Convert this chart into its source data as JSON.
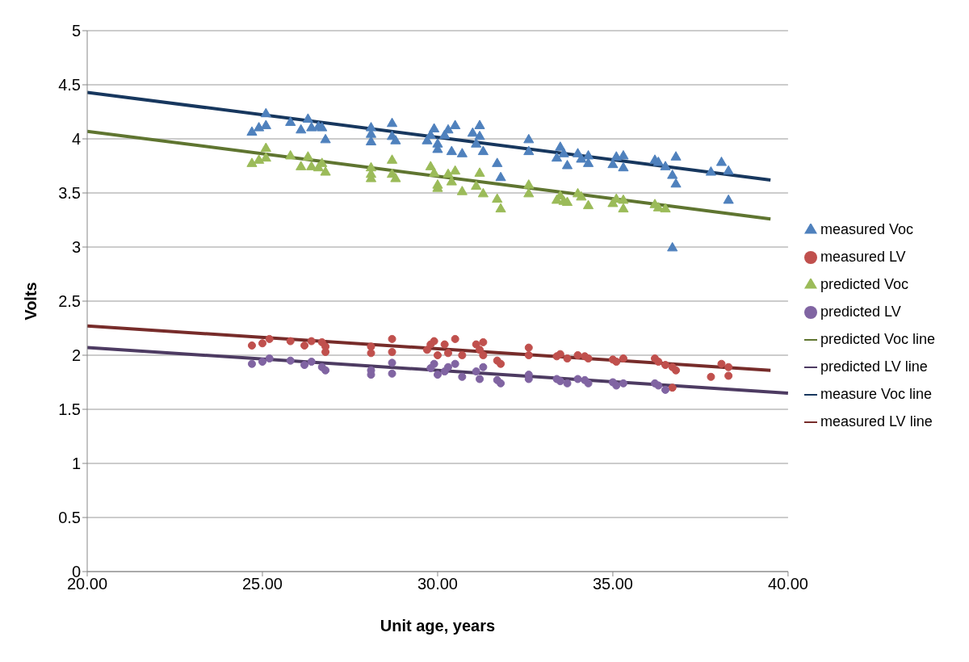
{
  "chart_data": {
    "type": "scatter",
    "xlabel": "Unit age, years",
    "ylabel": "Volts",
    "xlim": [
      20,
      40
    ],
    "xticks": [
      {
        "value": 20,
        "label": "20.00"
      },
      {
        "value": 25,
        "label": "25.00"
      },
      {
        "value": 30,
        "label": "30.00"
      },
      {
        "value": 35,
        "label": "35.00"
      },
      {
        "value": 40,
        "label": "40.00"
      }
    ],
    "ylim": [
      0,
      5
    ],
    "yticks": [
      0,
      0.5,
      1,
      1.5,
      2,
      2.5,
      3,
      3.5,
      4,
      4.5,
      5
    ],
    "grid": "y",
    "legend": "right",
    "series": [
      {
        "name": "measured Voc",
        "marker": "triangle",
        "color": "#4f81bd",
        "x": [
          24.7,
          24.9,
          25.1,
          25.1,
          25.8,
          26.1,
          26.3,
          26.4,
          26.6,
          26.7,
          26.8,
          28.1,
          28.1,
          28.1,
          28.7,
          28.7,
          28.8,
          29.7,
          29.8,
          29.9,
          30.0,
          30.0,
          30.2,
          30.3,
          30.4,
          30.5,
          30.7,
          31.0,
          31.1,
          31.2,
          31.2,
          31.3,
          31.7,
          31.8,
          32.6,
          32.6,
          33.4,
          33.5,
          33.6,
          33.7,
          34.0,
          34.1,
          34.3,
          34.3,
          35.0,
          35.1,
          35.3,
          35.3,
          36.2,
          36.3,
          36.5,
          36.7,
          36.8,
          36.8,
          36.7,
          37.8,
          38.1,
          38.3,
          38.3
        ],
        "values": [
          4.06,
          4.1,
          4.12,
          4.23,
          4.15,
          4.08,
          4.18,
          4.1,
          4.11,
          4.1,
          3.99,
          4.1,
          4.04,
          3.97,
          4.14,
          4.02,
          3.98,
          3.98,
          4.03,
          4.09,
          3.95,
          3.9,
          4.03,
          4.08,
          3.88,
          4.12,
          3.86,
          4.05,
          3.95,
          4.12,
          4.02,
          3.88,
          3.77,
          3.64,
          3.99,
          3.88,
          3.82,
          3.92,
          3.86,
          3.75,
          3.86,
          3.81,
          3.84,
          3.77,
          3.76,
          3.83,
          3.84,
          3.73,
          3.8,
          3.78,
          3.74,
          3.66,
          3.58,
          3.83,
          2.99,
          3.69,
          3.78,
          3.7,
          3.43
        ]
      },
      {
        "name": "measured LV",
        "marker": "circle",
        "color": "#c0504d",
        "x": [
          24.7,
          25.0,
          25.2,
          25.8,
          26.2,
          26.4,
          26.7,
          26.8,
          26.8,
          28.1,
          28.1,
          28.7,
          28.7,
          29.7,
          29.8,
          29.9,
          30.0,
          30.2,
          30.3,
          30.5,
          30.7,
          31.1,
          31.2,
          31.3,
          31.3,
          31.7,
          31.8,
          32.6,
          32.6,
          33.4,
          33.5,
          33.7,
          34.0,
          34.2,
          34.3,
          35.0,
          35.1,
          35.3,
          36.2,
          36.3,
          36.5,
          36.7,
          36.8,
          36.7,
          37.8,
          38.1,
          38.3,
          38.3
        ],
        "values": [
          2.09,
          2.11,
          2.15,
          2.13,
          2.09,
          2.13,
          2.12,
          2.03,
          2.08,
          2.08,
          2.02,
          2.15,
          2.03,
          2.05,
          2.1,
          2.13,
          2.0,
          2.1,
          2.02,
          2.15,
          2.0,
          2.1,
          2.05,
          2.12,
          2.0,
          1.95,
          1.92,
          2.07,
          2.0,
          1.99,
          2.01,
          1.97,
          2.0,
          1.99,
          1.97,
          1.96,
          1.94,
          1.97,
          1.97,
          1.94,
          1.91,
          1.89,
          1.86,
          1.7,
          1.8,
          1.92,
          1.89,
          1.81
        ]
      },
      {
        "name": "predicted Voc",
        "marker": "triangle",
        "color": "#9bbb59",
        "x": [
          24.7,
          24.9,
          25.1,
          25.1,
          25.8,
          26.1,
          26.3,
          26.4,
          26.6,
          26.7,
          26.8,
          28.1,
          28.1,
          28.1,
          28.7,
          28.7,
          28.8,
          29.8,
          29.9,
          30.0,
          30.0,
          30.3,
          30.4,
          30.5,
          30.7,
          31.1,
          31.2,
          31.3,
          31.7,
          31.8,
          32.6,
          32.6,
          33.4,
          33.5,
          33.6,
          33.7,
          34.0,
          34.1,
          34.3,
          35.0,
          35.1,
          35.3,
          35.3,
          36.2,
          36.3,
          36.5
        ],
        "values": [
          3.77,
          3.8,
          3.82,
          3.91,
          3.84,
          3.74,
          3.83,
          3.74,
          3.73,
          3.77,
          3.69,
          3.73,
          3.67,
          3.63,
          3.8,
          3.67,
          3.63,
          3.74,
          3.68,
          3.57,
          3.54,
          3.67,
          3.6,
          3.7,
          3.51,
          3.56,
          3.68,
          3.49,
          3.44,
          3.35,
          3.57,
          3.49,
          3.43,
          3.47,
          3.42,
          3.41,
          3.49,
          3.46,
          3.38,
          3.4,
          3.44,
          3.35,
          3.43,
          3.39,
          3.36,
          3.35
        ]
      },
      {
        "name": "predicted LV",
        "marker": "circle",
        "color": "#8064a2",
        "x": [
          24.7,
          25.0,
          25.2,
          25.8,
          26.2,
          26.4,
          26.7,
          26.8,
          28.1,
          28.1,
          28.7,
          28.7,
          29.8,
          29.9,
          30.0,
          30.2,
          30.3,
          30.5,
          30.7,
          31.1,
          31.2,
          31.3,
          31.7,
          31.8,
          32.6,
          32.6,
          33.4,
          33.5,
          33.7,
          34.0,
          34.2,
          34.3,
          35.0,
          35.1,
          35.3,
          36.2,
          36.3,
          36.5
        ],
        "values": [
          1.92,
          1.94,
          1.97,
          1.95,
          1.91,
          1.94,
          1.89,
          1.86,
          1.86,
          1.82,
          1.93,
          1.83,
          1.88,
          1.92,
          1.82,
          1.85,
          1.89,
          1.92,
          1.8,
          1.85,
          1.78,
          1.89,
          1.77,
          1.74,
          1.82,
          1.78,
          1.78,
          1.76,
          1.74,
          1.78,
          1.77,
          1.74,
          1.75,
          1.72,
          1.74,
          1.74,
          1.72,
          1.68
        ]
      },
      {
        "name": "predicted Voc line",
        "type": "line",
        "marker": "none",
        "color": "#5f7530",
        "x": [
          20,
          39.5
        ],
        "values": [
          4.07,
          3.26
        ]
      },
      {
        "name": "predicted LV line",
        "type": "line",
        "marker": "none",
        "color": "#4d3b62",
        "x": [
          20,
          40
        ],
        "values": [
          2.07,
          1.65
        ]
      },
      {
        "name": "measure Voc line",
        "type": "line",
        "marker": "none",
        "color": "#17375e",
        "x": [
          20,
          39.5
        ],
        "values": [
          4.43,
          3.62
        ]
      },
      {
        "name": "measured LV line",
        "type": "line",
        "marker": "none",
        "color": "#772c2a",
        "x": [
          20,
          39.5
        ],
        "values": [
          2.27,
          1.86
        ]
      }
    ]
  }
}
